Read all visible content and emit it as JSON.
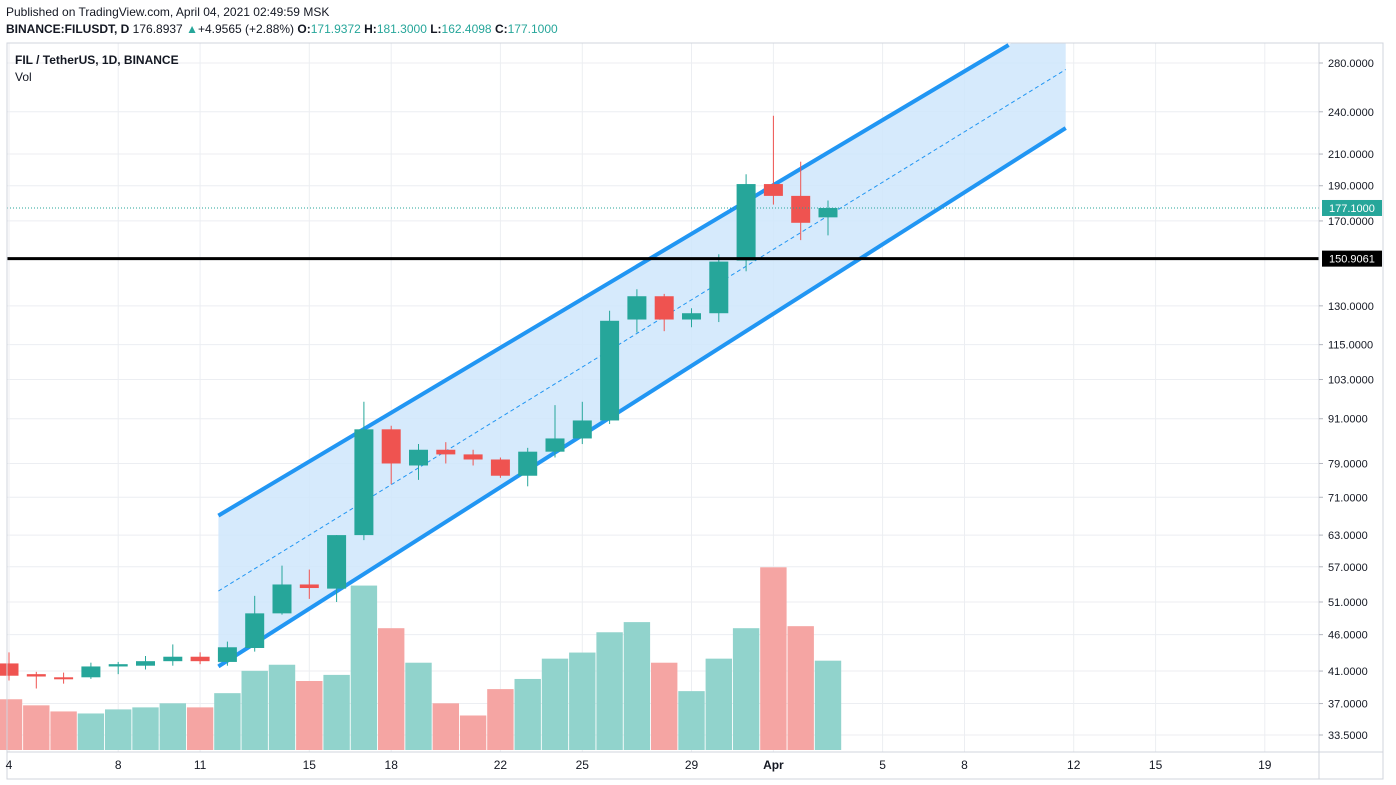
{
  "header": {
    "published": "Published on TradingView.com, April 04, 2021 02:49:59 MSK",
    "symbol": "BINANCE:FILUSDT, D",
    "last": "176.8937",
    "change": "+4.9565 (+2.88%)",
    "o_label": "O:",
    "o": "171.9372",
    "h_label": "H:",
    "h": "181.3000",
    "l_label": "L:",
    "l": "162.4098",
    "c_label": "C:",
    "c": "177.1000"
  },
  "legend": {
    "title": "FIL / TetherUS, 1D, BINANCE",
    "vol": "Vol"
  },
  "colors": {
    "up": "#26a69a",
    "down": "#ef5350",
    "up_vol": "#91d3cc",
    "down_vol": "#f5a5a3",
    "channel": "#2196f3",
    "channel_fill": "#cfe6fb",
    "grid": "#eceef2",
    "level": "#000000"
  },
  "chart_data": {
    "type": "candlestick",
    "title": "FIL / TetherUS, 1D, BINANCE",
    "y_scale": "log",
    "y_ticks": [
      "280.0000",
      "240.0000",
      "210.0000",
      "190.0000",
      "170.0000",
      "130.0000",
      "115.0000",
      "103.0000",
      "91.0000",
      "79.0000",
      "71.0000",
      "63.0000",
      "57.0000",
      "51.0000",
      "46.0000",
      "41.0000",
      "37.0000",
      "33.5000"
    ],
    "x_ticks": [
      "4",
      "8",
      "11",
      "15",
      "18",
      "22",
      "25",
      "29",
      "Apr",
      "5",
      "8",
      "12",
      "15",
      "19"
    ],
    "last_price_label": "177.1000",
    "level_label": "150.9061",
    "level_value": 150.9061,
    "candles": [
      {
        "date": "2021-03-04",
        "open": 42.0,
        "high": 43.5,
        "low": 39.8,
        "close": 40.4
      },
      {
        "date": "2021-03-05",
        "open": 40.6,
        "high": 40.9,
        "low": 38.8,
        "close": 40.3
      },
      {
        "date": "2021-03-06",
        "open": 40.2,
        "high": 40.8,
        "low": 39.4,
        "close": 40.1
      },
      {
        "date": "2021-03-07",
        "open": 40.2,
        "high": 42.1,
        "low": 40.0,
        "close": 41.6
      },
      {
        "date": "2021-03-08",
        "open": 41.6,
        "high": 42.2,
        "low": 40.6,
        "close": 41.9
      },
      {
        "date": "2021-03-09",
        "open": 41.7,
        "high": 43.0,
        "low": 41.2,
        "close": 42.3
      },
      {
        "date": "2021-03-10",
        "open": 42.3,
        "high": 44.6,
        "low": 41.7,
        "close": 42.9
      },
      {
        "date": "2021-03-11",
        "open": 42.9,
        "high": 43.5,
        "low": 41.9,
        "close": 42.3
      },
      {
        "date": "2021-03-12",
        "open": 42.2,
        "high": 45.0,
        "low": 41.7,
        "close": 44.2
      },
      {
        "date": "2021-03-13",
        "open": 44.1,
        "high": 52.0,
        "low": 43.6,
        "close": 49.2
      },
      {
        "date": "2021-03-14",
        "open": 49.2,
        "high": 57.2,
        "low": 49.0,
        "close": 53.9
      },
      {
        "date": "2021-03-15",
        "open": 53.9,
        "high": 56.5,
        "low": 51.5,
        "close": 53.3
      },
      {
        "date": "2021-03-16",
        "open": 53.2,
        "high": 63.0,
        "low": 51.0,
        "close": 63.0
      },
      {
        "date": "2021-03-17",
        "open": 63.0,
        "high": 96.0,
        "low": 62.0,
        "close": 88.0
      },
      {
        "date": "2021-03-18",
        "open": 88.0,
        "high": 89.0,
        "low": 74.0,
        "close": 79.0
      },
      {
        "date": "2021-03-19",
        "open": 78.5,
        "high": 84.0,
        "low": 75.0,
        "close": 82.5
      },
      {
        "date": "2021-03-20",
        "open": 82.5,
        "high": 84.5,
        "low": 79.0,
        "close": 81.3
      },
      {
        "date": "2021-03-21",
        "open": 81.3,
        "high": 82.5,
        "low": 78.5,
        "close": 80.0
      },
      {
        "date": "2021-03-22",
        "open": 80.0,
        "high": 80.5,
        "low": 75.5,
        "close": 76.0
      },
      {
        "date": "2021-03-23",
        "open": 76.0,
        "high": 83.0,
        "low": 73.5,
        "close": 82.0
      },
      {
        "date": "2021-03-24",
        "open": 82.0,
        "high": 95.0,
        "low": 80.5,
        "close": 85.5
      },
      {
        "date": "2021-03-25",
        "open": 85.5,
        "high": 96.0,
        "low": 84.0,
        "close": 90.5
      },
      {
        "date": "2021-03-26",
        "open": 90.5,
        "high": 128.0,
        "low": 89.5,
        "close": 124.0
      },
      {
        "date": "2021-03-27",
        "open": 124.5,
        "high": 137.0,
        "low": 119.5,
        "close": 134.0
      },
      {
        "date": "2021-03-28",
        "open": 134.0,
        "high": 135.0,
        "low": 120.0,
        "close": 124.5
      },
      {
        "date": "2021-03-29",
        "open": 124.5,
        "high": 129.0,
        "low": 121.5,
        "close": 127.0
      },
      {
        "date": "2021-03-30",
        "open": 127.0,
        "high": 153.0,
        "low": 123.5,
        "close": 149.5
      },
      {
        "date": "2021-03-31",
        "open": 150.0,
        "high": 197.0,
        "low": 145.0,
        "close": 191.0
      },
      {
        "date": "2021-04-01",
        "open": 191.0,
        "high": 237.0,
        "low": 179.0,
        "close": 184.0
      },
      {
        "date": "2021-04-02",
        "open": 184.0,
        "high": 205.0,
        "low": 160.0,
        "close": 169.0
      },
      {
        "date": "2021-04-03",
        "open": 171.9372,
        "high": 181.3,
        "low": 162.4098,
        "close": 177.1
      }
    ],
    "volume_relative": [
      0.25,
      0.22,
      0.19,
      0.18,
      0.2,
      0.21,
      0.23,
      0.21,
      0.28,
      0.39,
      0.42,
      0.34,
      0.37,
      0.81,
      0.6,
      0.43,
      0.23,
      0.17,
      0.3,
      0.35,
      0.45,
      0.48,
      0.58,
      0.63,
      0.43,
      0.29,
      0.45,
      0.6,
      0.9,
      0.61,
      0.44
    ],
    "channel": {
      "start_date": "2021-03-12",
      "end_date": "2021-04-12",
      "upper_start": 67.0,
      "upper_end": 330.0,
      "lower_start": 41.6,
      "lower_end": 228.0
    }
  }
}
